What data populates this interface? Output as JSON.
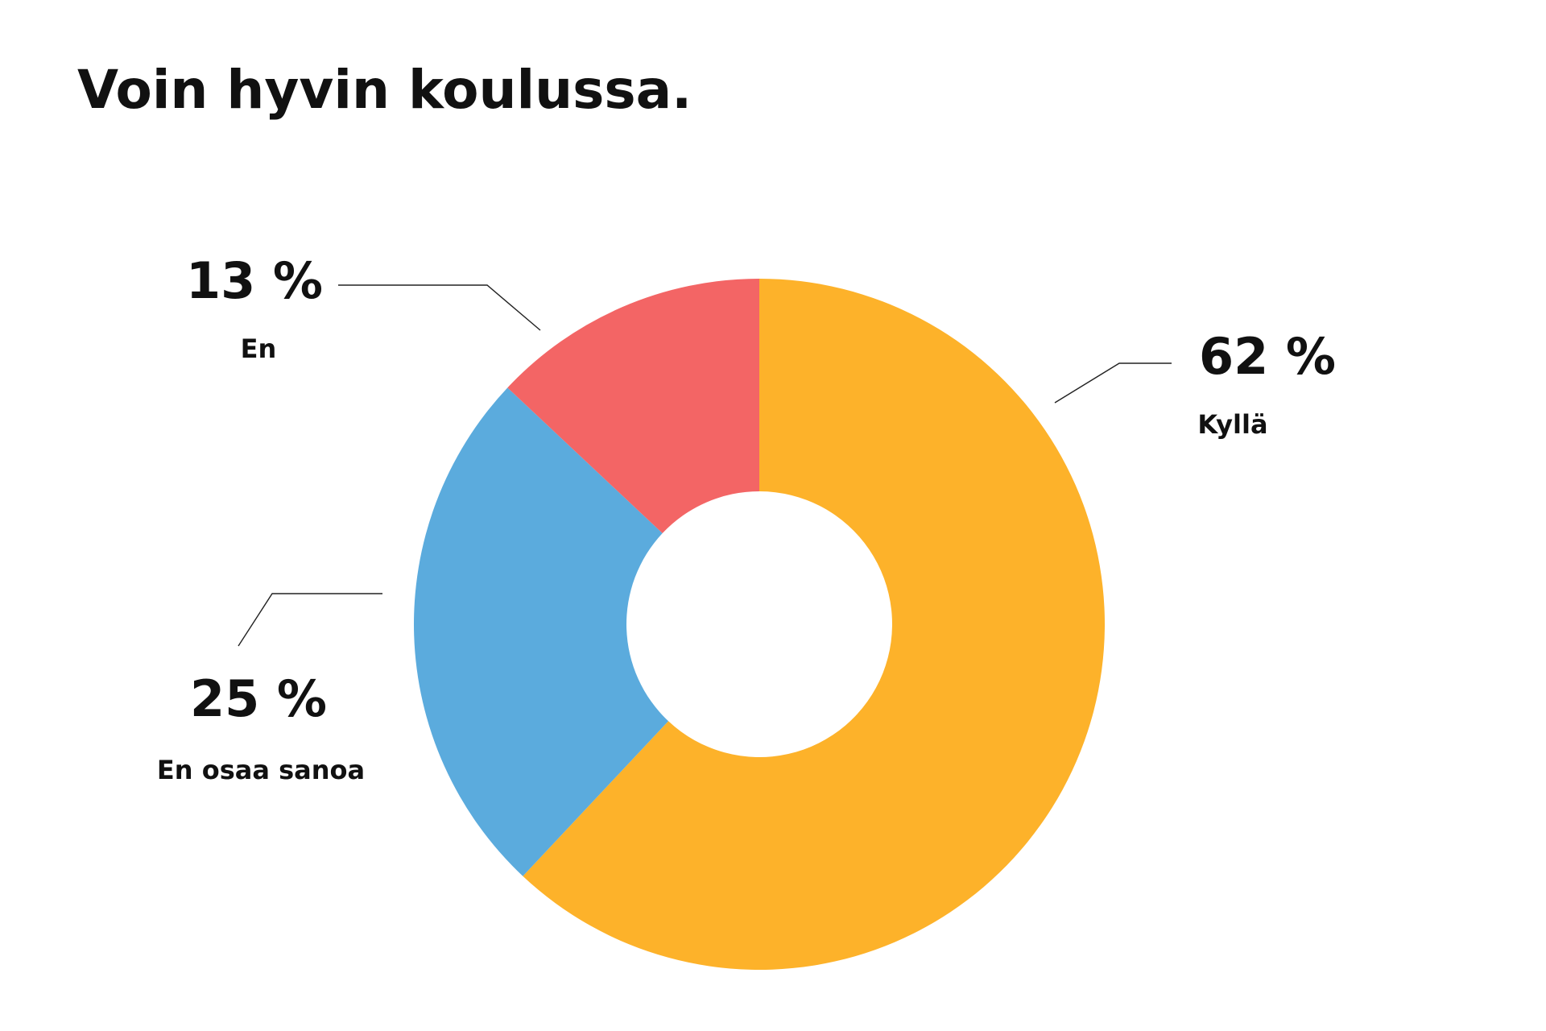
{
  "chart_data": {
    "type": "donut",
    "title": "Voin hyvin koulussa.",
    "categories": [
      "Kyllä",
      "En osaa sanoa",
      "En"
    ],
    "values": [
      62,
      25,
      13
    ],
    "value_labels": [
      "62 %",
      "25 %",
      "13 %"
    ],
    "colors": [
      "#fdb22a",
      "#5babdd",
      "#f36565"
    ]
  }
}
